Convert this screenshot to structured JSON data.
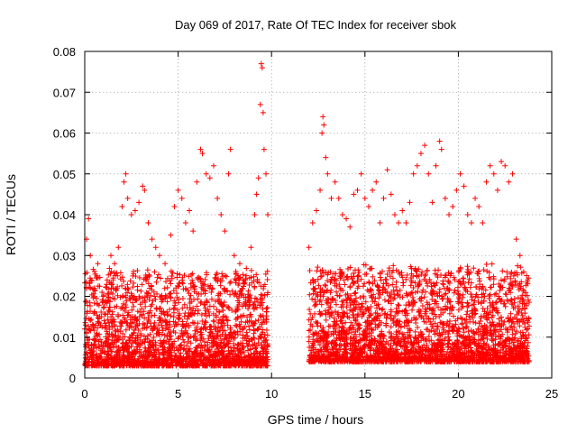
{
  "chart_data": {
    "type": "scatter",
    "title": "Day 069 of 2017, Rate Of TEC Index for receiver sbok",
    "xlabel": "GPS time / hours",
    "ylabel": "ROTI / TECUs",
    "xlim": [
      0,
      25
    ],
    "ylim": [
      0,
      0.08
    ],
    "x_ticks": [
      0,
      5,
      10,
      15,
      20,
      25
    ],
    "x_tick_labels": [
      "0",
      "5",
      "10",
      "15",
      "20",
      "25"
    ],
    "y_ticks": [
      0,
      0.01,
      0.02,
      0.03,
      0.04,
      0.05,
      0.06,
      0.07,
      0.08
    ],
    "y_tick_labels": [
      "0",
      "0.01",
      "0.02",
      "0.03",
      "0.04",
      "0.05",
      "0.06",
      "0.07",
      "0.08"
    ],
    "grid": true,
    "marker": "plus",
    "color": "#ff0000",
    "series": [
      {
        "points": [
          [
            0.0,
            0.012
          ],
          [
            0.1,
            0.034
          ],
          [
            0.2,
            0.039
          ],
          [
            0.3,
            0.03
          ],
          [
            0.5,
            0.022
          ],
          [
            0.7,
            0.028
          ],
          [
            0.9,
            0.015
          ],
          [
            1.0,
            0.02
          ],
          [
            1.2,
            0.024
          ],
          [
            1.4,
            0.03
          ],
          [
            1.6,
            0.028
          ],
          [
            1.8,
            0.032
          ],
          [
            2.0,
            0.042
          ],
          [
            2.1,
            0.048
          ],
          [
            2.2,
            0.05
          ],
          [
            2.3,
            0.044
          ],
          [
            2.5,
            0.04
          ],
          [
            2.7,
            0.041
          ],
          [
            2.9,
            0.043
          ],
          [
            3.1,
            0.047
          ],
          [
            3.2,
            0.046
          ],
          [
            3.4,
            0.038
          ],
          [
            3.6,
            0.034
          ],
          [
            3.8,
            0.032
          ],
          [
            4.0,
            0.03
          ],
          [
            4.3,
            0.028
          ],
          [
            4.6,
            0.035
          ],
          [
            4.8,
            0.042
          ],
          [
            5.0,
            0.046
          ],
          [
            5.2,
            0.044
          ],
          [
            5.4,
            0.038
          ],
          [
            5.6,
            0.041
          ],
          [
            5.8,
            0.036
          ],
          [
            6.0,
            0.048
          ],
          [
            6.2,
            0.056
          ],
          [
            6.3,
            0.055
          ],
          [
            6.5,
            0.05
          ],
          [
            6.7,
            0.049
          ],
          [
            6.9,
            0.052
          ],
          [
            7.1,
            0.044
          ],
          [
            7.3,
            0.04
          ],
          [
            7.5,
            0.036
          ],
          [
            7.7,
            0.05
          ],
          [
            7.8,
            0.056
          ],
          [
            8.0,
            0.03
          ],
          [
            8.3,
            0.028
          ],
          [
            8.6,
            0.024
          ],
          [
            8.9,
            0.032
          ],
          [
            9.1,
            0.04
          ],
          [
            9.2,
            0.045
          ],
          [
            9.3,
            0.049
          ],
          [
            9.4,
            0.067
          ],
          [
            9.45,
            0.077
          ],
          [
            9.5,
            0.076
          ],
          [
            9.55,
            0.065
          ],
          [
            9.6,
            0.056
          ],
          [
            9.7,
            0.05
          ],
          [
            9.8,
            0.04
          ],
          [
            12.0,
            0.032
          ],
          [
            12.2,
            0.038
          ],
          [
            12.4,
            0.041
          ],
          [
            12.6,
            0.046
          ],
          [
            12.7,
            0.06
          ],
          [
            12.75,
            0.064
          ],
          [
            12.8,
            0.062
          ],
          [
            12.9,
            0.054
          ],
          [
            13.0,
            0.05
          ],
          [
            13.2,
            0.044
          ],
          [
            13.4,
            0.048
          ],
          [
            13.6,
            0.044
          ],
          [
            13.8,
            0.04
          ],
          [
            14.0,
            0.039
          ],
          [
            14.2,
            0.037
          ],
          [
            14.4,
            0.045
          ],
          [
            14.6,
            0.046
          ],
          [
            14.8,
            0.05
          ],
          [
            15.0,
            0.044
          ],
          [
            15.2,
            0.042
          ],
          [
            15.4,
            0.046
          ],
          [
            15.6,
            0.048
          ],
          [
            15.8,
            0.038
          ],
          [
            16.0,
            0.044
          ],
          [
            16.2,
            0.051
          ],
          [
            16.4,
            0.045
          ],
          [
            16.6,
            0.04
          ],
          [
            16.8,
            0.038
          ],
          [
            17.0,
            0.041
          ],
          [
            17.2,
            0.038
          ],
          [
            17.4,
            0.043
          ],
          [
            17.6,
            0.05
          ],
          [
            17.8,
            0.052
          ],
          [
            18.0,
            0.055
          ],
          [
            18.2,
            0.057
          ],
          [
            18.4,
            0.05
          ],
          [
            18.6,
            0.043
          ],
          [
            18.8,
            0.052
          ],
          [
            19.0,
            0.058
          ],
          [
            19.1,
            0.056
          ],
          [
            19.3,
            0.044
          ],
          [
            19.5,
            0.04
          ],
          [
            19.7,
            0.042
          ],
          [
            19.9,
            0.046
          ],
          [
            20.1,
            0.05
          ],
          [
            20.3,
            0.047
          ],
          [
            20.5,
            0.04
          ],
          [
            20.7,
            0.038
          ],
          [
            20.9,
            0.044
          ],
          [
            21.1,
            0.042
          ],
          [
            21.3,
            0.038
          ],
          [
            21.5,
            0.048
          ],
          [
            21.7,
            0.052
          ],
          [
            21.9,
            0.05
          ],
          [
            22.1,
            0.046
          ],
          [
            22.3,
            0.053
          ],
          [
            22.5,
            0.052
          ],
          [
            22.7,
            0.048
          ],
          [
            22.9,
            0.05
          ],
          [
            23.1,
            0.034
          ],
          [
            23.3,
            0.03
          ],
          [
            23.5,
            0.026
          ],
          [
            23.7,
            0.024
          ]
        ]
      }
    ],
    "bulk_density": [
      {
        "x_start": 0.0,
        "x_end": 9.8,
        "y_low": 0.003,
        "y_high": 0.026,
        "points_per_hour": 230
      },
      {
        "x_start": 12.0,
        "x_end": 23.8,
        "y_low": 0.004,
        "y_high": 0.027,
        "points_per_hour": 230
      }
    ]
  }
}
